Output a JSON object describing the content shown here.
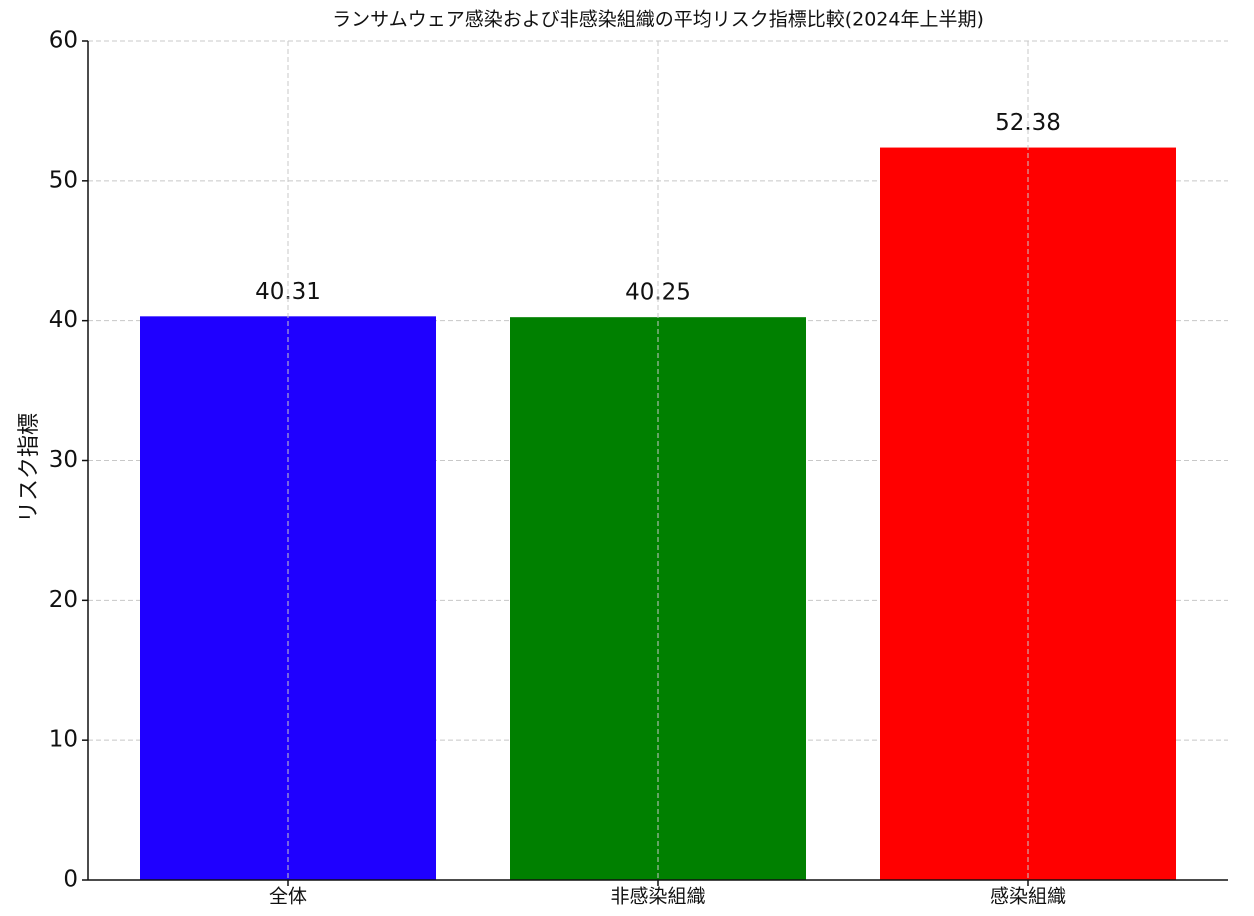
{
  "chart_data": {
    "type": "bar",
    "title": "ランサムウェア感染および非感染組織の平均リスク指標比較(2024年上半期)",
    "y_label": "リスク指標",
    "categories": [
      "全体",
      "非感染組織",
      "感染組織"
    ],
    "values": [
      40.31,
      40.25,
      52.38
    ],
    "colors": [
      "#1f00ff",
      "#008000",
      "#ff0000"
    ],
    "ylim": [
      0,
      60
    ],
    "yticks": [
      0,
      10,
      20,
      30,
      40,
      50,
      60
    ],
    "grid": true
  }
}
